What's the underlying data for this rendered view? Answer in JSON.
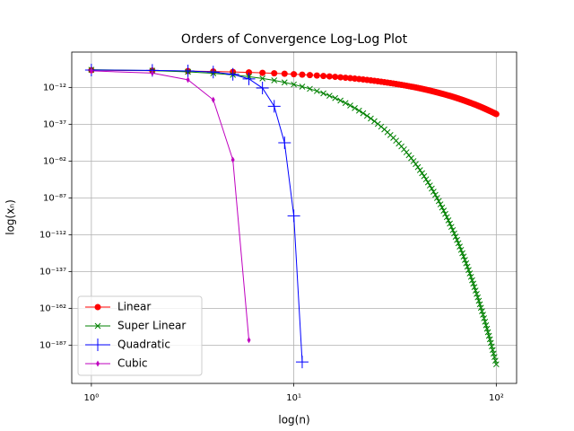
{
  "chart_data": {
    "type": "line",
    "title": "Orders of Convergence Log-Log Plot",
    "x_label": "log(n)",
    "y_label": "log(xₙ)",
    "x_scale": "log",
    "y_scale": "log",
    "grid": true,
    "legend_position": "lower left",
    "xlim": [
      0.8,
      126
    ],
    "ylim": [
      1e-213,
      1000000000000.0
    ],
    "xticks": [
      {
        "value": 1,
        "label": "10⁰"
      },
      {
        "value": 10,
        "label": "10¹"
      },
      {
        "value": 100,
        "label": "10²"
      }
    ],
    "yticks": [
      {
        "value": 1e-12,
        "label": "10⁻¹²"
      },
      {
        "value": 1e-37,
        "label": "10⁻³⁷"
      },
      {
        "value": 1e-62,
        "label": "10⁻⁶²"
      },
      {
        "value": 1e-87,
        "label": "10⁻⁸⁷"
      },
      {
        "value": 1e-112,
        "label": "10⁻¹¹²"
      },
      {
        "value": 1e-137,
        "label": "10⁻¹³⁷"
      },
      {
        "value": 1e-162,
        "label": "10⁻¹⁶²"
      },
      {
        "value": 1e-187,
        "label": "10⁻¹⁸⁷"
      }
    ],
    "series": [
      {
        "name": "Linear",
        "color": "#ff0000",
        "marker": "circle",
        "x": [
          1,
          2,
          3,
          4,
          5,
          6,
          7,
          8,
          9,
          10,
          11,
          12,
          13,
          14,
          15,
          16,
          17,
          18,
          19,
          20,
          21,
          22,
          23,
          24,
          25,
          26,
          27,
          28,
          29,
          30,
          31,
          32,
          33,
          34,
          35,
          36,
          37,
          38,
          39,
          40,
          41,
          42,
          43,
          44,
          45,
          46,
          47,
          48,
          49,
          50,
          51,
          52,
          53,
          54,
          55,
          56,
          57,
          58,
          59,
          60,
          61,
          62,
          63,
          64,
          65,
          66,
          67,
          68,
          69,
          70,
          71,
          72,
          73,
          74,
          75,
          76,
          77,
          78,
          79,
          80,
          81,
          82,
          83,
          84,
          85,
          86,
          87,
          88,
          89,
          90,
          91,
          92,
          93,
          94,
          95,
          96,
          97,
          98,
          99,
          100
        ],
        "values": [
          0.5,
          0.25,
          0.125,
          0.0625,
          0.03125,
          0.015625,
          0.0078125,
          0.00390625,
          0.00195,
          0.000977,
          0.000488,
          0.000244,
          0.000122,
          6.1e-05,
          3.05e-05,
          1.53e-05,
          7.63e-06,
          3.81e-06,
          1.91e-06,
          9.54e-07,
          4.77e-07,
          2.38e-07,
          1.19e-07,
          5.96e-08,
          2.98e-08,
          1.49e-08,
          7.45e-09,
          3.73e-09,
          1.86e-09,
          9.31e-10,
          4.66e-10,
          2.33e-10,
          1.16e-10,
          5.82e-11,
          2.91e-11,
          1.46e-11,
          7.28e-12,
          3.64e-12,
          1.82e-12,
          9.09e-13,
          4.55e-13,
          2.27e-13,
          1.14e-13,
          5.68e-14,
          2.84e-14,
          1.42e-14,
          7.11e-15,
          3.55e-15,
          1.78e-15,
          8.88e-16,
          4.44e-16,
          2.22e-16,
          1.11e-16,
          5.55e-17,
          2.78e-17,
          1.39e-17,
          6.94e-18,
          3.47e-18,
          1.73e-18,
          8.67e-19,
          4.34e-19,
          2.17e-19,
          1.08e-19,
          5.42e-20,
          2.71e-20,
          1.36e-20,
          6.78e-21,
          3.39e-21,
          1.69e-21,
          8.47e-22,
          4.24e-22,
          2.12e-22,
          1.06e-22,
          5.29e-23,
          2.65e-23,
          1.32e-23,
          6.62e-24,
          3.31e-24,
          1.65e-24,
          8.27e-25,
          4.14e-25,
          2.07e-25,
          1.03e-25,
          5.17e-26,
          2.58e-26,
          1.29e-26,
          6.46e-27,
          3.23e-27,
          1.62e-27,
          8.08e-28,
          4.04e-28,
          2.02e-28,
          1.01e-28,
          5.05e-29,
          2.52e-29,
          1.26e-29,
          6.31e-30,
          3.16e-30,
          1.58e-30,
          7.89e-31
        ]
      },
      {
        "name": "Super Linear",
        "color": "#008000",
        "marker": "x",
        "x": [
          1,
          2,
          3,
          4,
          5,
          6,
          7,
          8,
          9,
          10,
          11,
          12,
          13,
          14,
          15,
          16,
          17,
          18,
          19,
          20,
          21,
          22,
          23,
          24,
          25,
          26,
          27,
          28,
          29,
          30,
          31,
          32,
          33,
          34,
          35,
          36,
          37,
          38,
          39,
          40,
          41,
          42,
          43,
          44,
          45,
          46,
          47,
          48,
          49,
          50,
          51,
          52,
          53,
          54,
          55,
          56,
          57,
          58,
          59,
          60,
          61,
          62,
          63,
          64,
          65,
          66,
          67,
          68,
          69,
          70,
          71,
          72,
          73,
          74,
          75,
          76,
          77,
          78,
          79,
          80,
          81,
          82,
          83,
          84,
          85,
          86,
          87,
          88,
          89,
          90,
          91,
          92,
          93,
          94,
          95,
          96,
          97,
          98,
          99,
          100
        ],
        "values": [
          1,
          0.25,
          0.037,
          0.0039,
          0.00032,
          2.14e-05,
          1.21e-06,
          5.96e-08,
          2.58e-09,
          1e-10,
          3.5e-12,
          1.12e-13,
          3.3e-15,
          9e-17,
          2.28e-18,
          5.4e-20,
          1.21e-21,
          2.54e-23,
          5e-25,
          9.5e-27,
          1.71e-28,
          2.93e-30,
          4.8e-32,
          7.5e-34,
          1.13e-35,
          1.62e-37,
          2.25e-39,
          3e-41,
          3.9e-43,
          4.9e-45,
          5.8e-47,
          6.8e-49,
          7.7e-51,
          8.5e-53,
          9.1e-55,
          9.4e-57,
          9.5e-59,
          9.3e-61,
          8.9e-63,
          8.3e-65,
          7.5e-67,
          6.7e-69,
          5.7e-71,
          4.9e-73,
          4e-75,
          3.3e-77,
          2.6e-79,
          2e-81,
          1.5e-83,
          1.1e-85,
          8.2e-88,
          5.8e-90,
          4.1e-92,
          2.8e-94,
          1.9e-96,
          1.3e-98,
          8.2e-101,
          5.3e-103,
          3.3e-105,
          2e-107,
          1.2e-109,
          7.4e-112,
          4.4e-114,
          2.5e-116,
          1.5e-118,
          8.2e-121,
          4.5e-123,
          2.5e-125,
          1.3e-127,
          7e-130,
          3.6e-132,
          1.9e-134,
          9.5e-137,
          4.8e-139,
          2.3e-141,
          1.1e-143,
          5.5e-146,
          2.6e-148,
          1.2e-150,
          5.6e-153,
          2.6e-155,
          1.2e-157,
          5.2e-160,
          2.3e-162,
          1e-164,
          4.3e-167,
          1.8e-169,
          7.7e-172,
          3.2e-174,
          1.3e-176,
          5.4e-179,
          2.1e-181,
          8.5e-184,
          3.4e-186,
          1.3e-188,
          5e-191,
          1.9e-193,
          7.3e-196,
          2.7e-198,
          1e-200
        ]
      },
      {
        "name": "Quadratic",
        "color": "#0000ff",
        "marker": "plus",
        "x": [
          1,
          2,
          3,
          4,
          5,
          6,
          7,
          8,
          9,
          10,
          11
        ],
        "values": [
          0.64,
          0.4096,
          0.168,
          0.0281,
          0.00079,
          6.3e-07,
          3.9e-13,
          1.6e-25,
          2.4e-50,
          5.8e-100,
          3.4e-199
        ]
      },
      {
        "name": "Cubic",
        "color": "#bf00bf",
        "marker": "thin-diamond",
        "x": [
          1,
          2,
          3,
          4,
          5,
          6
        ],
        "values": [
          0.176,
          0.0054,
          1.6e-07,
          4e-21,
          6.3e-62,
          2.5e-184
        ]
      }
    ]
  }
}
